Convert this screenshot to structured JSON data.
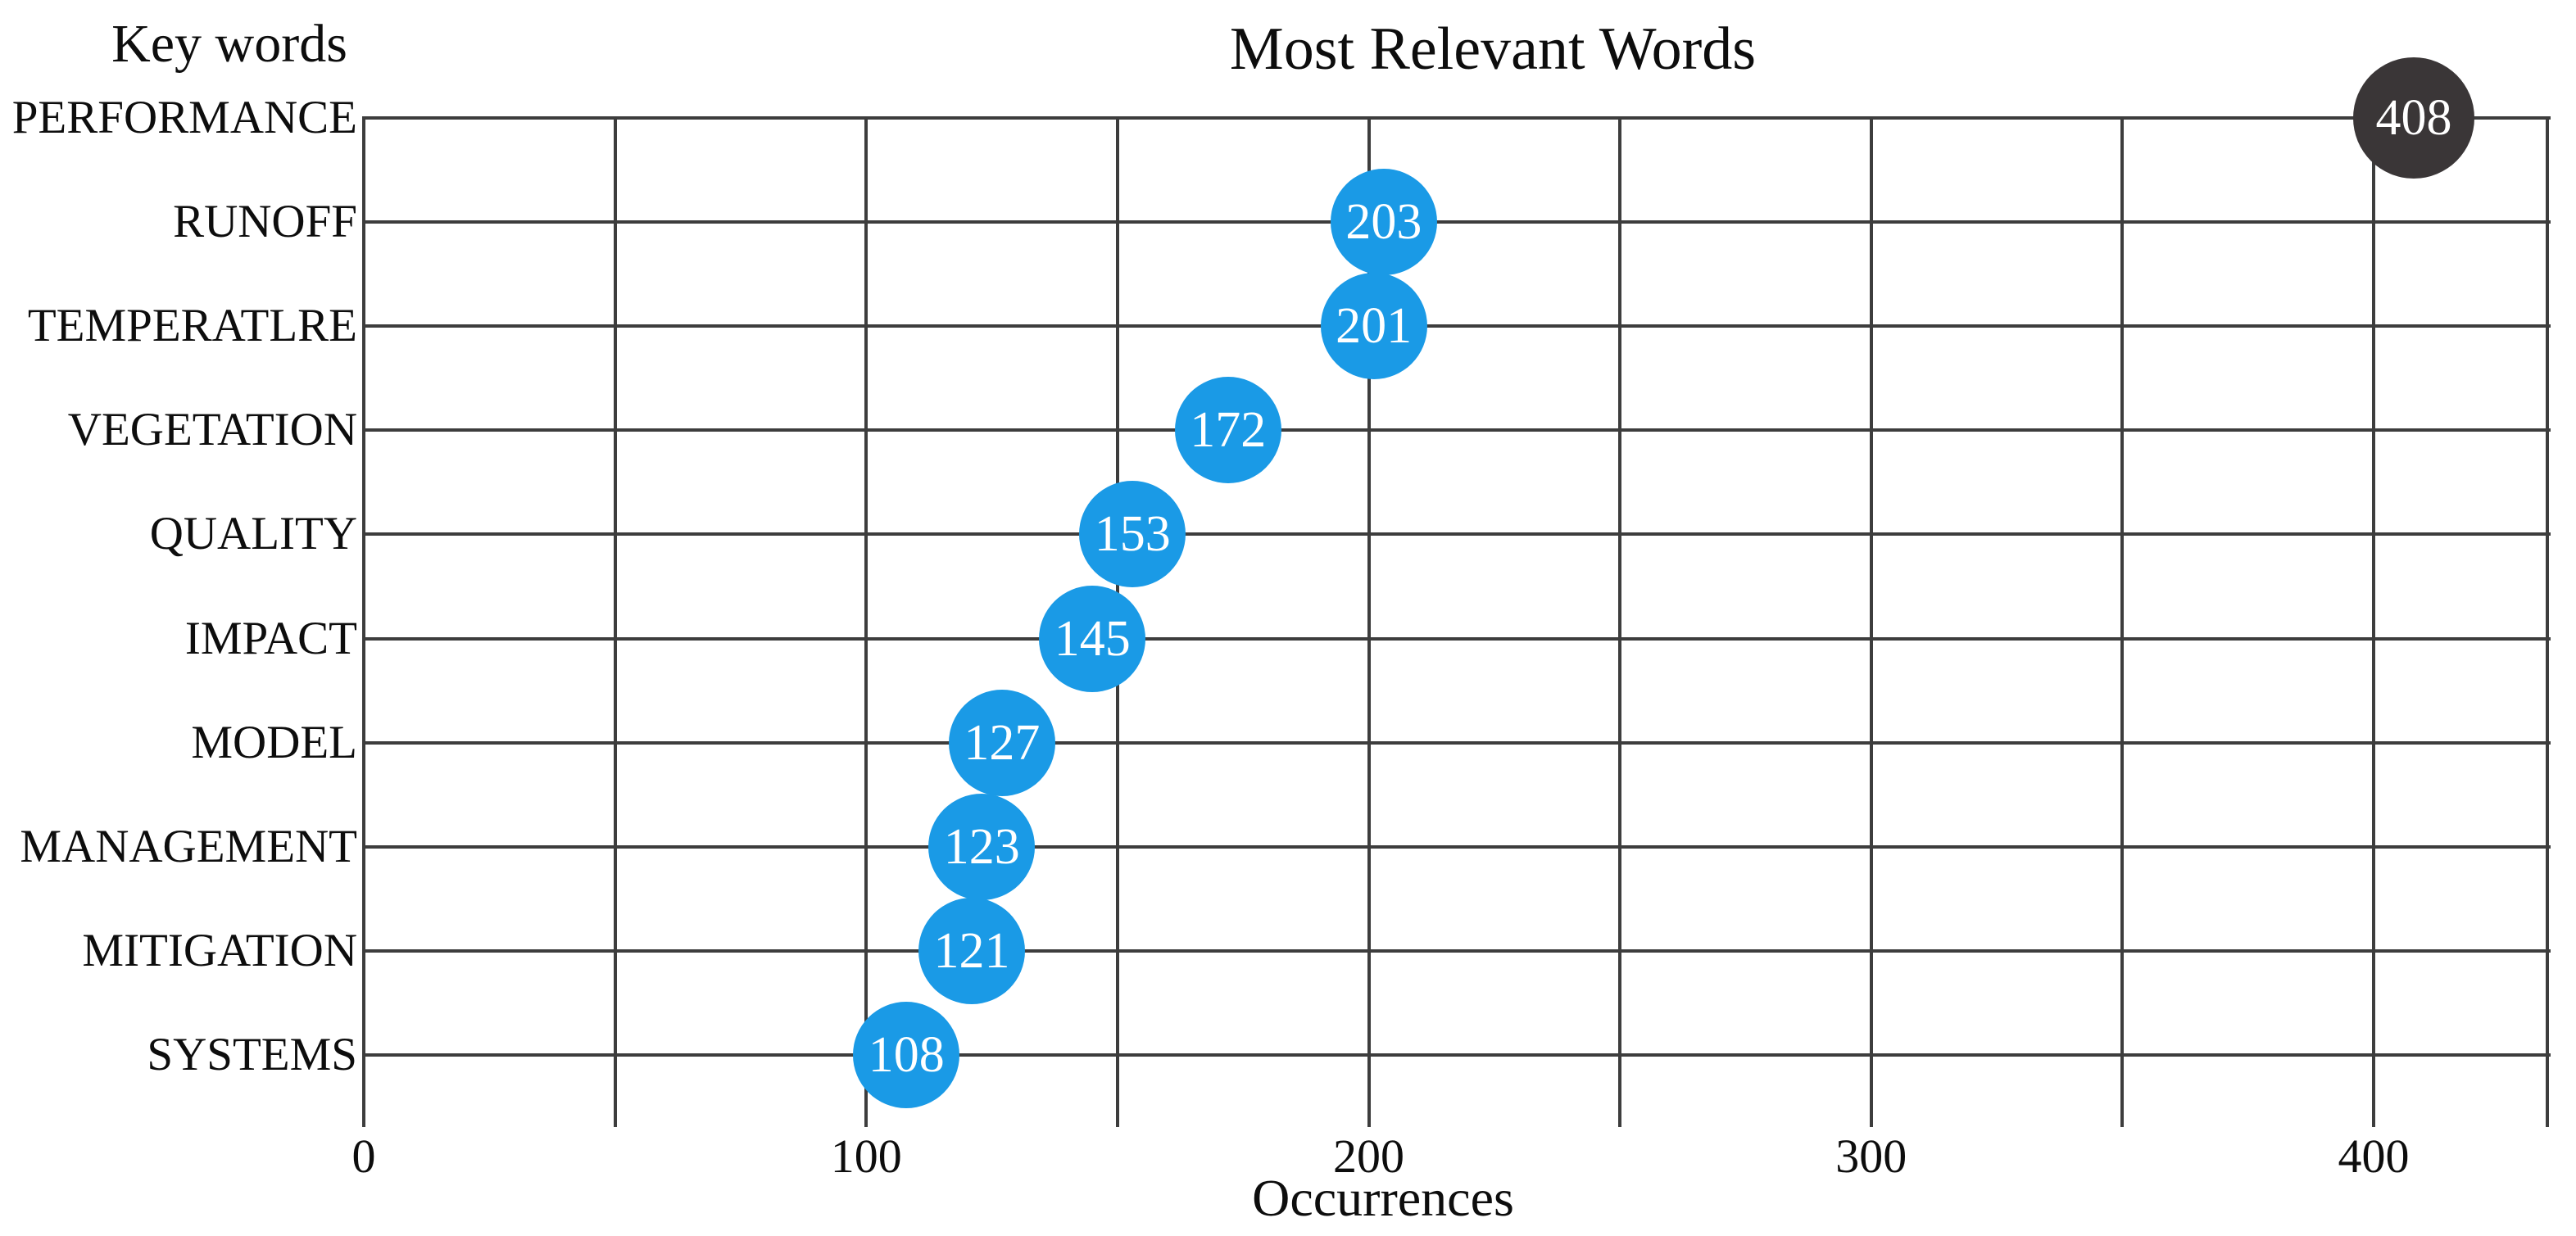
{
  "chart_data": {
    "type": "scatter",
    "subtype": "bubble-dot-plot",
    "title": "Most Relevant Words",
    "xlabel": "Occurrences",
    "ylabel": "Key words",
    "categories": [
      "PERFORMANCE",
      "RUNOFF",
      "TEMPERATLRE",
      "VEGETATION",
      "QUALITY",
      "IMPACT",
      "MODEL",
      "MANAGEMENT",
      "MITIGATION",
      "SYSTEMS"
    ],
    "values": [
      408,
      203,
      201,
      172,
      153,
      145,
      127,
      123,
      121,
      108
    ],
    "x_tick_labels": [
      "0",
      "100",
      "200",
      "300",
      "400"
    ],
    "x_tick_values": [
      0,
      100,
      200,
      300,
      400
    ],
    "x_gridline_values": [
      0,
      50,
      100,
      150,
      200,
      250,
      300,
      350,
      400
    ],
    "xlim": [
      0,
      435
    ],
    "grid": "both",
    "legend": "none",
    "colors": {
      "bubble_default": "#1a9ae6",
      "bubble_top": "#3a3637",
      "bubble_label": "#ffffff",
      "gridline": "#3d3d3d",
      "text": "#0d0d0d",
      "background": "#ffffff"
    }
  }
}
